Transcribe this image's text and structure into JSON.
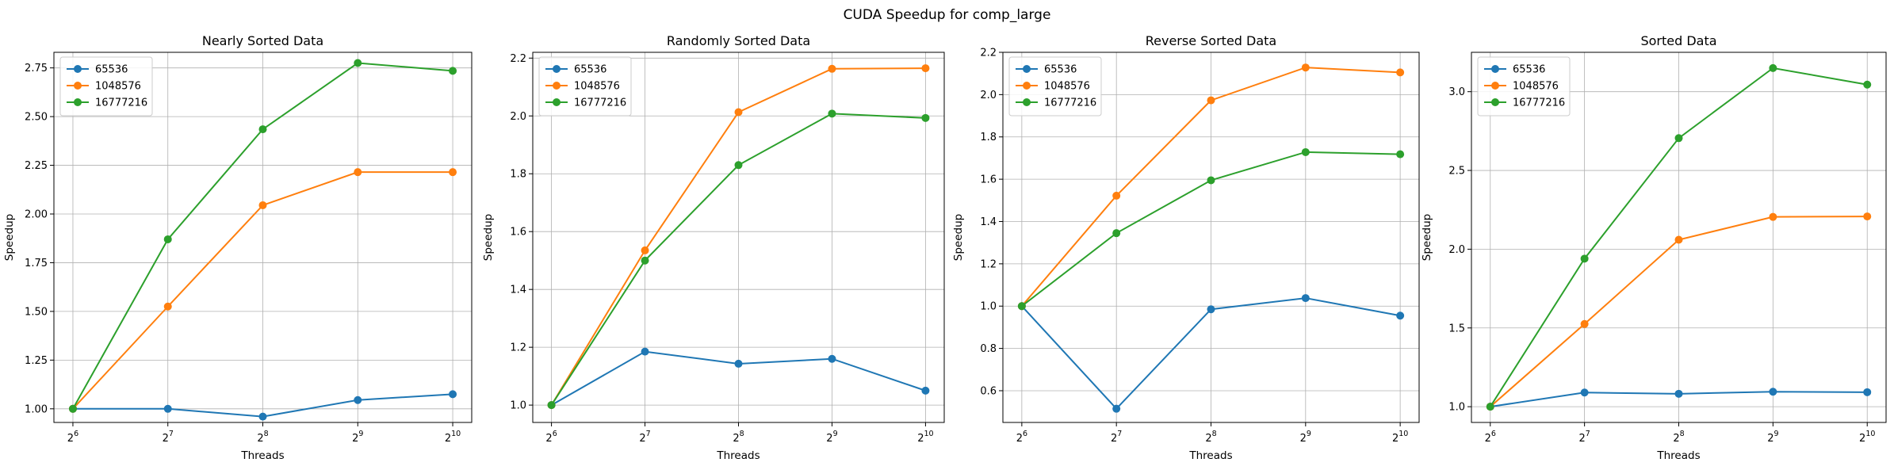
{
  "figure": {
    "title": "CUDA Speedup for comp_large"
  },
  "chart_data": [
    {
      "type": "line",
      "title": "Nearly Sorted Data",
      "xlabel": "Threads",
      "ylabel": "Speedup",
      "x_scale": "log2",
      "x": [
        64,
        128,
        256,
        512,
        1024
      ],
      "x_tick_labels": [
        {
          "base": "2",
          "exp": "6"
        },
        {
          "base": "2",
          "exp": "7"
        },
        {
          "base": "2",
          "exp": "8"
        },
        {
          "base": "2",
          "exp": "9"
        },
        {
          "base": "2",
          "exp": "10"
        }
      ],
      "ylim": [
        0.93,
        2.83
      ],
      "yticks": [
        "1.00",
        "1.25",
        "1.50",
        "1.75",
        "2.00",
        "2.25",
        "2.50",
        "2.75"
      ],
      "grid": true,
      "legend": "upper-left",
      "series": [
        {
          "name": "65536",
          "color": "#1f77b4",
          "values": [
            1.0,
            1.0,
            0.96,
            1.045,
            1.075
          ]
        },
        {
          "name": "1048576",
          "color": "#ff7f0e",
          "values": [
            1.0,
            1.525,
            2.045,
            2.215,
            2.215
          ]
        },
        {
          "name": "16777216",
          "color": "#2ca02c",
          "values": [
            1.0,
            1.87,
            2.435,
            2.775,
            2.735
          ]
        }
      ]
    },
    {
      "type": "line",
      "title": "Randomly Sorted Data",
      "xlabel": "Threads",
      "ylabel": "Speedup",
      "x_scale": "log2",
      "x": [
        64,
        128,
        256,
        512,
        1024
      ],
      "x_tick_labels": [
        {
          "base": "2",
          "exp": "6"
        },
        {
          "base": "2",
          "exp": "7"
        },
        {
          "base": "2",
          "exp": "8"
        },
        {
          "base": "2",
          "exp": "9"
        },
        {
          "base": "2",
          "exp": "10"
        }
      ],
      "ylim": [
        0.94,
        2.22
      ],
      "yticks": [
        "1.0",
        "1.2",
        "1.4",
        "1.6",
        "1.8",
        "2.0",
        "2.2"
      ],
      "grid": true,
      "legend": "upper-left",
      "series": [
        {
          "name": "65536",
          "color": "#1f77b4",
          "values": [
            1.0,
            1.185,
            1.143,
            1.16,
            1.05
          ]
        },
        {
          "name": "1048576",
          "color": "#ff7f0e",
          "values": [
            1.0,
            1.535,
            2.013,
            2.163,
            2.165
          ]
        },
        {
          "name": "16777216",
          "color": "#2ca02c",
          "values": [
            1.0,
            1.5,
            1.83,
            2.008,
            1.993
          ]
        }
      ]
    },
    {
      "type": "line",
      "title": "Reverse Sorted Data",
      "xlabel": "Threads",
      "ylabel": "Speedup",
      "x_scale": "log2",
      "x": [
        64,
        128,
        256,
        512,
        1024
      ],
      "x_tick_labels": [
        {
          "base": "2",
          "exp": "6"
        },
        {
          "base": "2",
          "exp": "7"
        },
        {
          "base": "2",
          "exp": "8"
        },
        {
          "base": "2",
          "exp": "9"
        },
        {
          "base": "2",
          "exp": "10"
        }
      ],
      "ylim": [
        0.45,
        2.2
      ],
      "yticks": [
        "0.6",
        "0.8",
        "1.0",
        "1.2",
        "1.4",
        "1.6",
        "1.8",
        "2.0",
        "2.2"
      ],
      "grid": true,
      "legend": "upper-left",
      "series": [
        {
          "name": "65536",
          "color": "#1f77b4",
          "values": [
            1.0,
            0.515,
            0.985,
            1.038,
            0.955
          ]
        },
        {
          "name": "1048576",
          "color": "#ff7f0e",
          "values": [
            1.0,
            1.522,
            1.973,
            2.128,
            2.105
          ]
        },
        {
          "name": "16777216",
          "color": "#2ca02c",
          "values": [
            1.0,
            1.345,
            1.595,
            1.728,
            1.718
          ]
        }
      ]
    },
    {
      "type": "line",
      "title": "Sorted Data",
      "xlabel": "Threads",
      "ylabel": "Speedup",
      "x_scale": "log2",
      "x": [
        64,
        128,
        256,
        512,
        1024
      ],
      "x_tick_labels": [
        {
          "base": "2",
          "exp": "6"
        },
        {
          "base": "2",
          "exp": "7"
        },
        {
          "base": "2",
          "exp": "8"
        },
        {
          "base": "2",
          "exp": "9"
        },
        {
          "base": "2",
          "exp": "10"
        }
      ],
      "ylim": [
        0.9,
        3.25
      ],
      "yticks": [
        "1.0",
        "1.5",
        "2.0",
        "2.5",
        "3.0"
      ],
      "grid": true,
      "legend": "upper-left",
      "series": [
        {
          "name": "65536",
          "color": "#1f77b4",
          "values": [
            1.0,
            1.09,
            1.082,
            1.095,
            1.092
          ]
        },
        {
          "name": "1048576",
          "color": "#ff7f0e",
          "values": [
            1.0,
            1.525,
            2.06,
            2.205,
            2.208
          ]
        },
        {
          "name": "16777216",
          "color": "#2ca02c",
          "values": [
            1.0,
            1.94,
            2.705,
            3.15,
            3.045
          ]
        }
      ]
    }
  ]
}
